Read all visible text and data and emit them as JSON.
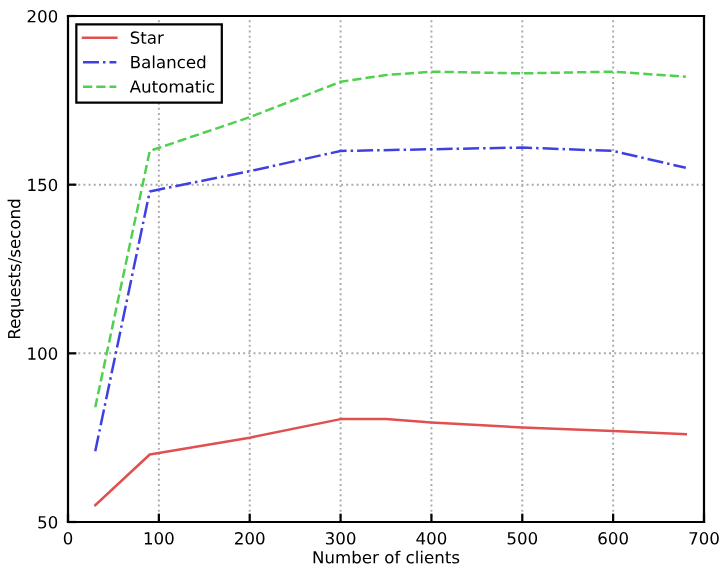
{
  "chart_data": {
    "type": "line",
    "xlabel": "Number of clients",
    "ylabel": "Requests/second",
    "xlim": [
      0,
      700
    ],
    "xticks": [
      0,
      100,
      200,
      300,
      400,
      500,
      600,
      700
    ],
    "ylim": [
      50,
      200
    ],
    "yticks": [
      50,
      100,
      150,
      200
    ],
    "grid": true,
    "legend": "top left",
    "marker": "none",
    "series": [
      {
        "name": "Star",
        "color": "#e05050",
        "line_style": "solid",
        "x": [
          30,
          90,
          200,
          300,
          350,
          400,
          500,
          600,
          680
        ],
        "values": [
          55,
          70,
          75,
          80.5,
          80.5,
          79.5,
          78,
          77,
          76
        ]
      },
      {
        "name": "Balanced",
        "color": "#4040e0",
        "line_style": "dashdot",
        "x": [
          30,
          90,
          200,
          300,
          400,
          500,
          600,
          680
        ],
        "values": [
          71,
          148,
          154,
          160,
          160.5,
          161,
          160,
          155
        ]
      },
      {
        "name": "Automatic",
        "color": "#50d050",
        "line_style": "dashed",
        "x": [
          30,
          90,
          200,
          300,
          350,
          400,
          500,
          600,
          680
        ],
        "values": [
          84,
          160,
          170,
          180.5,
          182.5,
          183.5,
          183,
          183.5,
          182
        ]
      }
    ]
  }
}
